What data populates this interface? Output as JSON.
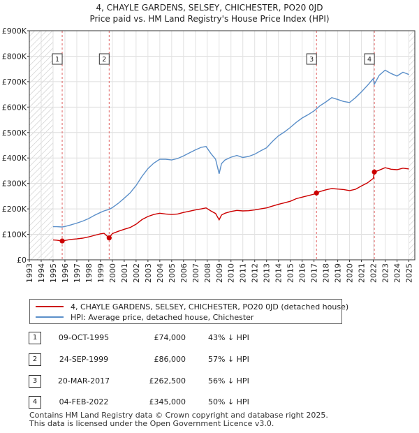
{
  "title_line1": "4, CHAYLE GARDENS, SELSEY, CHICHESTER, PO20 0JD",
  "title_line2": "Price paid vs. HM Land Registry's House Price Index (HPI)",
  "colors": {
    "property": "#cc0000",
    "hpi": "#5b8fc9",
    "hatch": "#c8c8c8",
    "marker_line": "#e06060"
  },
  "chart_data": {
    "type": "line",
    "title": "4, CHAYLE GARDENS, SELSEY, CHICHESTER, PO20 0JD",
    "subtitle": "Price paid vs. HM Land Registry's House Price Index (HPI)",
    "xlabel": "",
    "ylabel": "",
    "xlim": [
      1993,
      2025.5
    ],
    "ylim": [
      0,
      900000
    ],
    "x_ticks": [
      "1993",
      "1994",
      "1995",
      "1996",
      "1997",
      "1998",
      "1999",
      "2000",
      "2001",
      "2002",
      "2003",
      "2004",
      "2005",
      "2006",
      "2007",
      "2008",
      "2009",
      "2010",
      "2011",
      "2012",
      "2013",
      "2014",
      "2015",
      "2016",
      "2017",
      "2018",
      "2019",
      "2020",
      "2021",
      "2022",
      "2023",
      "2024",
      "2025"
    ],
    "y_ticks": [
      {
        "value": 0,
        "label": "£0"
      },
      {
        "value": 100000,
        "label": "£100K"
      },
      {
        "value": 200000,
        "label": "£200K"
      },
      {
        "value": 300000,
        "label": "£300K"
      },
      {
        "value": 400000,
        "label": "£400K"
      },
      {
        "value": 500000,
        "label": "£500K"
      },
      {
        "value": 600000,
        "label": "£600K"
      },
      {
        "value": 700000,
        "label": "£700K"
      },
      {
        "value": 800000,
        "label": "£800K"
      },
      {
        "value": 900000,
        "label": "£900K"
      }
    ],
    "grid": true,
    "hatched_periods": [
      [
        1993,
        1995.0
      ],
      [
        2025.0,
        2025.5
      ]
    ],
    "series": [
      {
        "name": "4, CHAYLE GARDENS, SELSEY, CHICHESTER, PO20 0JD (detached house)",
        "x": [
          1995.0,
          1995.3,
          1995.77,
          1996.0,
          1996.5,
          1997.0,
          1997.5,
          1998.0,
          1998.5,
          1999.0,
          1999.3,
          1999.73,
          2000.0,
          2000.5,
          2001.0,
          2001.5,
          2002.0,
          2002.5,
          2003.0,
          2003.5,
          2004.0,
          2004.5,
          2005.0,
          2005.5,
          2006.0,
          2006.5,
          2007.0,
          2007.5,
          2007.9,
          2008.3,
          2008.7,
          2009.0,
          2009.2,
          2009.5,
          2010.0,
          2010.5,
          2011.0,
          2011.5,
          2012.0,
          2012.5,
          2013.0,
          2013.5,
          2014.0,
          2014.5,
          2015.0,
          2015.5,
          2016.0,
          2016.5,
          2017.0,
          2017.21,
          2017.5,
          2018.0,
          2018.5,
          2019.0,
          2019.5,
          2020.0,
          2020.5,
          2021.0,
          2021.5,
          2022.0,
          2022.09,
          2022.5,
          2023.0,
          2023.5,
          2024.0,
          2024.5,
          2025.0
        ],
        "values": [
          78000,
          77000,
          74000,
          76000,
          80000,
          82000,
          85000,
          90000,
          96000,
          102000,
          104000,
          86000,
          103000,
          112000,
          120000,
          127000,
          140000,
          158000,
          170000,
          178000,
          183000,
          180000,
          178000,
          180000,
          186000,
          191000,
          196000,
          200000,
          204000,
          192000,
          182000,
          157000,
          176000,
          183000,
          190000,
          194000,
          192000,
          193000,
          196000,
          200000,
          204000,
          211000,
          218000,
          224000,
          230000,
          240000,
          246000,
          252000,
          258000,
          262500,
          268000,
          275000,
          280000,
          278000,
          276000,
          272000,
          277000,
          290000,
          302000,
          320000,
          345000,
          352000,
          362000,
          356000,
          354000,
          360000,
          357000
        ]
      },
      {
        "name": "HPI: Average price, detached house, Chichester",
        "x": [
          1995.0,
          1995.3,
          1995.77,
          1996.0,
          1996.5,
          1997.0,
          1997.5,
          1998.0,
          1998.5,
          1999.0,
          1999.3,
          1999.73,
          2000.0,
          2000.5,
          2001.0,
          2001.5,
          2002.0,
          2002.5,
          2003.0,
          2003.5,
          2004.0,
          2004.5,
          2005.0,
          2005.5,
          2006.0,
          2006.5,
          2007.0,
          2007.5,
          2007.9,
          2008.3,
          2008.7,
          2009.0,
          2009.2,
          2009.5,
          2010.0,
          2010.5,
          2011.0,
          2011.5,
          2012.0,
          2012.5,
          2013.0,
          2013.5,
          2014.0,
          2014.5,
          2015.0,
          2015.5,
          2016.0,
          2016.5,
          2017.0,
          2017.21,
          2017.5,
          2018.0,
          2018.5,
          2019.0,
          2019.5,
          2020.0,
          2020.5,
          2021.0,
          2021.5,
          2022.0,
          2022.09,
          2022.5,
          2023.0,
          2023.5,
          2024.0,
          2024.5,
          2025.0
        ],
        "values": [
          130000,
          130000,
          129000,
          131000,
          137000,
          144000,
          152000,
          162000,
          175000,
          186000,
          192000,
          198000,
          205000,
          222000,
          242000,
          263000,
          292000,
          328000,
          358000,
          380000,
          395000,
          395000,
          392000,
          398000,
          408000,
          420000,
          432000,
          442000,
          445000,
          418000,
          395000,
          338000,
          378000,
          392000,
          403000,
          410000,
          402000,
          406000,
          415000,
          428000,
          440000,
          465000,
          487000,
          502000,
          520000,
          540000,
          557000,
          570000,
          585000,
          593000,
          605000,
          620000,
          637000,
          630000,
          622000,
          618000,
          637000,
          660000,
          685000,
          712000,
          690000,
          725000,
          745000,
          732000,
          722000,
          737000,
          728000
        ]
      }
    ],
    "sales": [
      {
        "n": "1",
        "x": 1995.77,
        "value": 74000
      },
      {
        "n": "2",
        "x": 1999.73,
        "value": 86000
      },
      {
        "n": "3",
        "x": 2017.21,
        "value": 262500
      },
      {
        "n": "4",
        "x": 2022.09,
        "value": 345000
      }
    ]
  },
  "legend": {
    "property_label": "4, CHAYLE GARDENS, SELSEY, CHICHESTER, PO20 0JD (detached house)",
    "hpi_label": "HPI: Average price, detached house, Chichester"
  },
  "sales_table": [
    {
      "num": "1",
      "date": "09-OCT-1995",
      "price": "£74,000",
      "hpi": "43% ↓ HPI"
    },
    {
      "num": "2",
      "date": "24-SEP-1999",
      "price": "£86,000",
      "hpi": "57% ↓ HPI"
    },
    {
      "num": "3",
      "date": "20-MAR-2017",
      "price": "£262,500",
      "hpi": "56% ↓ HPI"
    },
    {
      "num": "4",
      "date": "04-FEB-2022",
      "price": "£345,000",
      "hpi": "50% ↓ HPI"
    }
  ],
  "footer": {
    "line1": "Contains HM Land Registry data © Crown copyright and database right 2025.",
    "line2": "This data is licensed under the Open Government Licence v3.0."
  }
}
